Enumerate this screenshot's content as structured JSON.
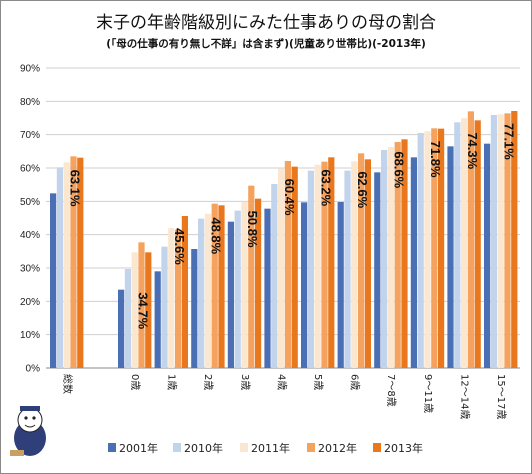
{
  "chart_data": {
    "type": "bar",
    "title": "末子の年齢階級別にみた仕事ありの母の割合",
    "subtitle": "(「母の仕事の有り無し不詳」は含まず)(児童あり世帯比)(-2013年)",
    "categories": [
      "総数",
      "0歳",
      "1歳",
      "2歳",
      "3歳",
      "4歳",
      "5歳",
      "6歳",
      "7～8歳",
      "9～11歳",
      "12～14歳",
      "15～17歳"
    ],
    "series": [
      {
        "name": "2001年",
        "color": "#4a6fb5",
        "values": [
          52.4,
          23.5,
          29.0,
          35.7,
          43.9,
          47.8,
          49.7,
          49.8,
          58.7,
          63.2,
          66.5,
          67.3
        ]
      },
      {
        "name": "2010年",
        "color": "#c2d3ec",
        "values": [
          60.2,
          29.7,
          36.4,
          44.8,
          47.2,
          55.2,
          59.2,
          59.2,
          65.4,
          70.5,
          73.7,
          75.9
        ]
      },
      {
        "name": "2011年",
        "color": "#fbe6cf",
        "values": [
          61.7,
          34.7,
          42.0,
          46.3,
          49.9,
          59.8,
          61.0,
          62.0,
          66.3,
          71.0,
          74.9,
          76.1
        ]
      },
      {
        "name": "2012年",
        "color": "#f4a25e",
        "values": [
          63.5,
          37.7,
          41.5,
          49.3,
          54.7,
          62.1,
          61.9,
          64.4,
          67.8,
          71.9,
          77.0,
          76.4
        ]
      },
      {
        "name": "2013年",
        "color": "#e8771e",
        "values": [
          63.1,
          34.7,
          45.6,
          48.8,
          50.8,
          60.4,
          63.2,
          62.6,
          68.6,
          71.8,
          74.3,
          77.1
        ]
      }
    ],
    "data_labels": [
      "63.1%",
      "34.7%",
      "45.6%",
      "48.8%",
      "50.8%",
      "60.4%",
      "63.2%",
      "62.6%",
      "68.6%",
      "71.8%",
      "74.3%",
      "77.1%"
    ],
    "y_ticks": [
      "0%",
      "10%",
      "20%",
      "30%",
      "40%",
      "50%",
      "60%",
      "70%",
      "80%",
      "90%"
    ],
    "ylim": [
      0,
      90
    ],
    "grid": true,
    "legend_position": "bottom"
  }
}
